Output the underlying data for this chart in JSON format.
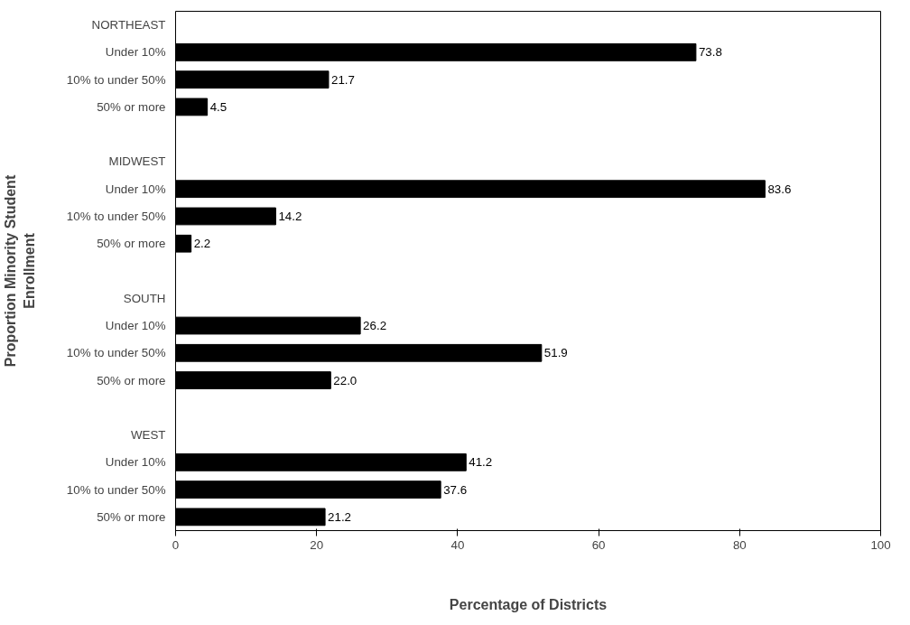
{
  "chart_data": {
    "type": "bar",
    "orientation": "horizontal",
    "xlabel": "Percentage of Districts",
    "ylabel": "Proportion Minority Student\nEnrollment",
    "categories": [
      "NORTHEAST",
      "Under 10%",
      "10% to under 50%",
      "50% or more",
      null,
      "MIDWEST",
      "Under 10%",
      "10% to under 50%",
      "50% or more",
      null,
      "SOUTH",
      "Under 10%",
      "10% to under 50%",
      "50% or more",
      null,
      "WEST",
      "Under 10%",
      "10% to under 50%",
      "50% or more"
    ],
    "values": [
      null,
      73.8,
      21.7,
      4.5,
      null,
      null,
      83.6,
      14.2,
      2.2,
      null,
      null,
      26.2,
      51.9,
      22.0,
      null,
      null,
      41.2,
      37.6,
      21.2
    ],
    "value_labels": [
      null,
      "73.8",
      "21.7",
      "4.5",
      null,
      null,
      "83.6",
      "14.2",
      "2.2",
      null,
      null,
      "26.2",
      "51.9",
      "22.0",
      null,
      null,
      "41.2",
      "37.6",
      "21.2"
    ],
    "color": "#000000",
    "xlim": [
      0,
      100
    ],
    "xticks": [
      0,
      20,
      40,
      60,
      80,
      100
    ],
    "grid": false
  }
}
